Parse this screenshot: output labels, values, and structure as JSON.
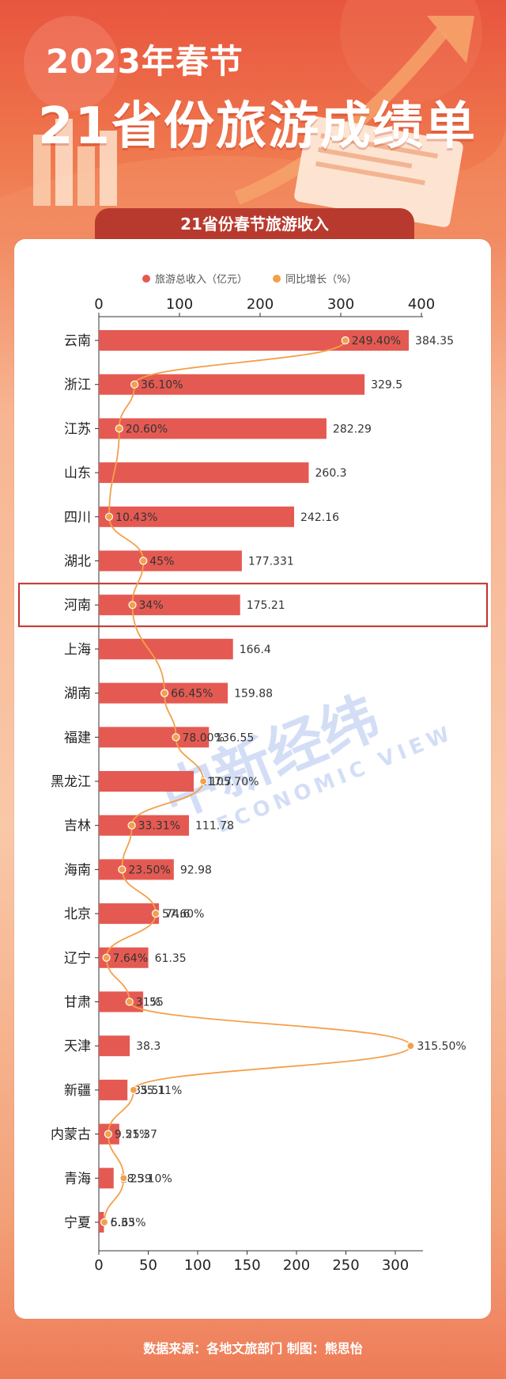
{
  "header": {
    "line1": "2023年春节",
    "line2": "21省份旅游成绩单"
  },
  "section_title": "21省份春节旅游收入",
  "legend": {
    "revenue": "旅游总收入（亿元）",
    "growth": "同比增长（%）"
  },
  "colors": {
    "bar": "#e45a52",
    "line": "#f4a04a",
    "highlight_box": "#c0302a",
    "axis": "#333333"
  },
  "watermark": {
    "cn": "中新经纬",
    "en": "ECONOMIC VIEW"
  },
  "footer": "数据来源：各地文旅部门   制图：熊思怡",
  "chart_data": {
    "type": "bar",
    "orientation": "horizontal",
    "highlight": "河南",
    "top_axis_ticks": [
      "0",
      "100",
      "200",
      "300",
      "400"
    ],
    "bottom_axis_ticks": [
      "0",
      "50",
      "100",
      "150",
      "200",
      "250",
      "300"
    ],
    "categories": [
      "云南",
      "浙江",
      "江苏",
      "山东",
      "四川",
      "湖北",
      "河南",
      "上海",
      "湖南",
      "福建",
      "黑龙江",
      "吉林",
      "海南",
      "北京",
      "辽宁",
      "甘肃",
      "天津",
      "新疆",
      "内蒙古",
      "青海",
      "宁夏"
    ],
    "series": [
      {
        "name": "旅游总收入（亿元）",
        "axis": "top",
        "xlim": [
          0,
          400
        ],
        "values": [
          384.35,
          329.5,
          282.29,
          260.3,
          242.16,
          177.331,
          175.21,
          166.4,
          159.88,
          136.55,
          117.7,
          111.78,
          92.98,
          74.6,
          61.35,
          55,
          38.3,
          35.51,
          25.37,
          18.39,
          6.33
        ],
        "labels": [
          "384.35",
          "329.5",
          "282.29",
          "260.3",
          "242.16",
          "177.331",
          "175.21",
          "166.4",
          "159.88",
          "136.55",
          "117.7",
          "111.78",
          "92.98",
          "74.6",
          "61.35",
          "55",
          "38.3",
          "35.51",
          "25.37",
          "18.39",
          "6.33"
        ]
      },
      {
        "name": "同比增长（%）",
        "axis": "bottom",
        "xlim": [
          0,
          320
        ],
        "values": [
          249.4,
          36.1,
          20.6,
          null,
          10.43,
          45,
          34,
          null,
          66.45,
          78.0,
          105.7,
          33.31,
          23.5,
          57.6,
          7.64,
          31,
          315.5,
          35.11,
          9.51,
          25.1,
          5.65
        ],
        "labels": [
          "249.40%",
          "36.10%",
          "20.60%",
          "",
          "10.43%",
          "45%",
          "34%",
          "",
          "66.45%",
          "78.00%",
          "105.70%",
          "33.31%",
          "23.50%",
          "57.60%",
          "7.64%",
          "31%",
          "315.50%",
          "35.11%",
          "9.51%",
          "25.10%",
          "5.65%"
        ]
      }
    ]
  }
}
